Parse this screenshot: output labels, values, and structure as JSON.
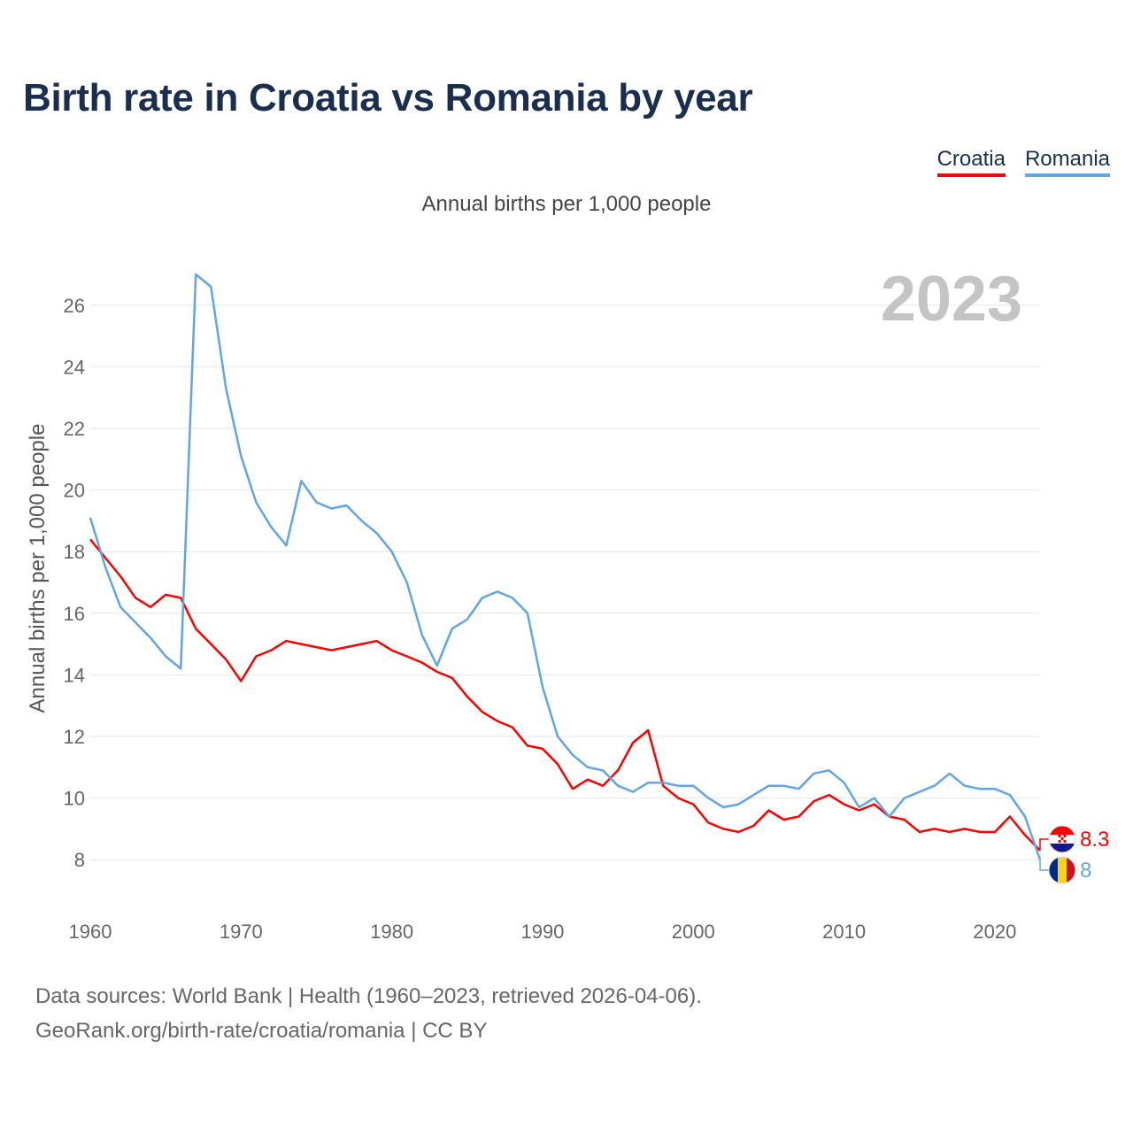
{
  "title": "Birth rate in Croatia vs Romania by year",
  "subtitle": "Annual births per 1,000 people",
  "legend": [
    {
      "name": "Croatia",
      "color": "#ff0000"
    },
    {
      "name": "Romania",
      "color": "#60a5e8"
    }
  ],
  "year_label": "2023",
  "footer": {
    "line1": "Data sources: World Bank | Health (1960–2023, retrieved 2026-04-06).",
    "line2": "GeoRank.org/birth-rate/croatia/romania | CC BY"
  },
  "chart_data": {
    "type": "line",
    "title": "Birth rate in Croatia vs Romania by year",
    "xlabel": "",
    "ylabel": "Annual births per 1,000 people",
    "xlim": [
      1960,
      2023
    ],
    "ylim": [
      7,
      27
    ],
    "x_ticks": [
      1960,
      1970,
      1980,
      1990,
      2000,
      2010,
      2020
    ],
    "y_ticks": [
      8,
      10,
      12,
      14,
      16,
      18,
      20,
      22,
      24,
      26
    ],
    "x": [
      1960,
      1961,
      1962,
      1963,
      1964,
      1965,
      1966,
      1967,
      1968,
      1969,
      1970,
      1971,
      1972,
      1973,
      1974,
      1975,
      1976,
      1977,
      1978,
      1979,
      1980,
      1981,
      1982,
      1983,
      1984,
      1985,
      1986,
      1987,
      1988,
      1989,
      1990,
      1991,
      1992,
      1993,
      1994,
      1995,
      1996,
      1997,
      1998,
      1999,
      2000,
      2001,
      2002,
      2003,
      2004,
      2005,
      2006,
      2007,
      2008,
      2009,
      2010,
      2011,
      2012,
      2013,
      2014,
      2015,
      2016,
      2017,
      2018,
      2019,
      2020,
      2021,
      2022,
      2023
    ],
    "series": [
      {
        "name": "Croatia",
        "color": "#ff0000",
        "end_label": "8.3",
        "values": [
          18.4,
          17.8,
          17.2,
          16.5,
          16.2,
          16.6,
          16.5,
          15.5,
          15.0,
          14.5,
          13.8,
          14.6,
          14.8,
          15.1,
          15.0,
          14.9,
          14.8,
          14.9,
          15.0,
          15.1,
          14.8,
          14.6,
          14.4,
          14.1,
          13.9,
          13.3,
          12.8,
          12.5,
          12.3,
          11.7,
          11.6,
          11.1,
          10.3,
          10.6,
          10.4,
          10.9,
          11.8,
          12.2,
          10.4,
          10.0,
          9.8,
          9.2,
          9.0,
          8.9,
          9.1,
          9.6,
          9.3,
          9.4,
          9.9,
          10.1,
          9.8,
          9.6,
          9.8,
          9.4,
          9.3,
          8.9,
          9.0,
          8.9,
          9.0,
          8.9,
          8.9,
          9.4,
          8.8,
          8.3
        ]
      },
      {
        "name": "Romania",
        "color": "#60a5e8",
        "end_label": "8",
        "values": [
          19.1,
          17.5,
          16.2,
          15.7,
          15.2,
          14.6,
          14.2,
          27.0,
          26.6,
          23.3,
          21.1,
          19.6,
          18.8,
          18.2,
          20.3,
          19.6,
          19.4,
          19.5,
          19.0,
          18.6,
          18.0,
          17.0,
          15.3,
          14.3,
          15.5,
          15.8,
          16.5,
          16.7,
          16.5,
          16.0,
          13.6,
          12.0,
          11.4,
          11.0,
          10.9,
          10.4,
          10.2,
          10.5,
          10.5,
          10.4,
          10.4,
          10.0,
          9.7,
          9.8,
          10.1,
          10.4,
          10.4,
          10.3,
          10.8,
          10.9,
          10.5,
          9.7,
          10.0,
          9.4,
          10.0,
          10.2,
          10.4,
          10.8,
          10.4,
          10.3,
          10.3,
          10.1,
          9.4,
          8.0
        ]
      }
    ]
  }
}
